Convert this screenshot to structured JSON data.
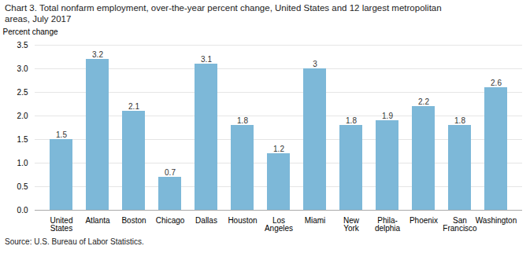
{
  "chart_data": {
    "type": "bar",
    "title": "Chart 3. Total nonfarm employment, over-the-year percent change, United  States and 12 largest metropolitan\nareas, July 2017",
    "y_label": "Percent change",
    "source": "Source: U.S. Bureau of Labor Statistics.",
    "categories": [
      "United\nStates",
      "Atlanta",
      "Boston",
      "Chicago",
      "Dallas",
      "Houston",
      "Los\nAngeles",
      "Miami",
      "New\nYork",
      "Phila-\ndelphia",
      "Phoenix",
      "San\nFrancisco",
      "Washington"
    ],
    "values": [
      1.5,
      3.2,
      2.1,
      0.7,
      3.1,
      1.8,
      1.2,
      3.0,
      1.8,
      1.9,
      2.2,
      1.8,
      2.6
    ],
    "color": "#7db8d8",
    "ylim": [
      0,
      3.5
    ],
    "yticks": [
      {
        "value": 0,
        "label": "0.0"
      },
      0.5,
      {
        "value": 1,
        "label": "1.0"
      },
      1.5,
      {
        "value": 2,
        "label": "2.0"
      },
      2.5,
      {
        "value": 3,
        "label": "3.0"
      },
      3.5
    ],
    "grid": true,
    "data_labels": true
  }
}
